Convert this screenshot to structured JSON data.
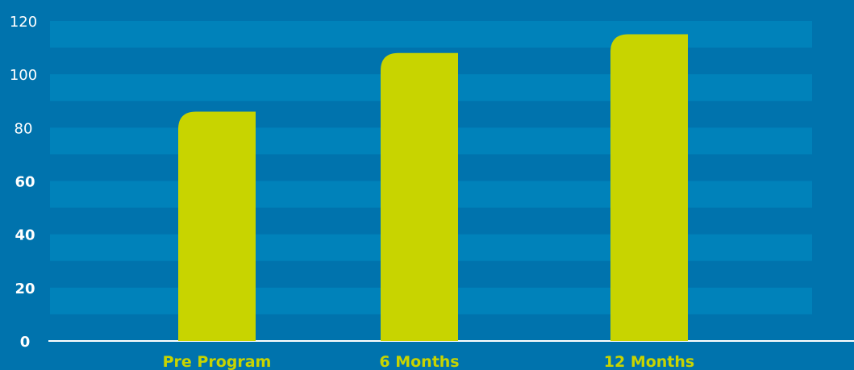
{
  "colors": {
    "background": "#0073ad",
    "band": "#0082ba",
    "bar": "#c8d400",
    "axis_line": "#ffffff",
    "y_tick_text": "#ffffff",
    "x_tick_text": "#c8d400"
  },
  "chart_data": {
    "type": "bar",
    "categories": [
      "Pre Program",
      "6 Months",
      "12 Months"
    ],
    "values": [
      86,
      108,
      115
    ],
    "ylim": [
      0,
      120
    ],
    "y_ticks": [
      {
        "value": 0,
        "label": "0"
      },
      {
        "value": 20,
        "label": "20"
      },
      {
        "value": 40,
        "label": "40"
      },
      {
        "value": 60,
        "label": "60"
      },
      {
        "value": 80,
        "label": "80"
      },
      {
        "value": 100,
        "label": "100"
      },
      {
        "value": 120,
        "label": "120"
      }
    ],
    "grid": "alternating horizontal bands",
    "legend": "none"
  }
}
